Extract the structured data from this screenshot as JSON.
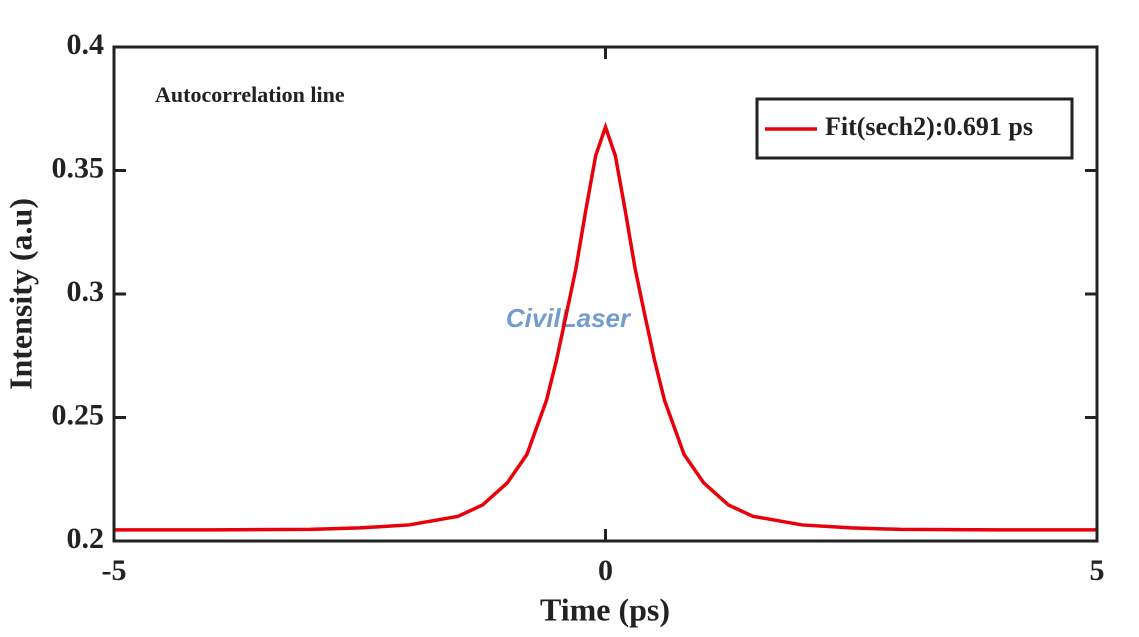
{
  "chart_data": {
    "type": "line",
    "annotation": "Autocorrelation line",
    "watermark": "CivilLaser",
    "x_label": "Time  (ps)",
    "y_label": "Intensity  (a.u)",
    "x": [
      -5,
      -4,
      -3,
      -2.5,
      -2,
      -1.5,
      -1.25,
      -1,
      -0.8,
      -0.6,
      -0.5,
      -0.4,
      -0.3,
      -0.2,
      -0.1,
      0,
      0.1,
      0.2,
      0.3,
      0.4,
      0.5,
      0.6,
      0.8,
      1,
      1.25,
      1.5,
      2,
      2.5,
      3,
      4,
      5
    ],
    "series": [
      {
        "name": "Fit(sech2):0.691 ps",
        "color": "#e8000b",
        "values": [
          0.2045,
          0.2045,
          0.2047,
          0.2053,
          0.2065,
          0.21,
          0.2146,
          0.2235,
          0.235,
          0.257,
          0.273,
          0.2915,
          0.3105,
          0.334,
          0.356,
          0.3676,
          0.356,
          0.334,
          0.3105,
          0.2915,
          0.273,
          0.257,
          0.235,
          0.2235,
          0.2146,
          0.21,
          0.2065,
          0.2053,
          0.2047,
          0.2045,
          0.2045
        ]
      }
    ],
    "xlim": [
      -5,
      5
    ],
    "xticks": [
      -5,
      0,
      5
    ],
    "ylim": [
      0.2,
      0.4
    ],
    "yticks": [
      0.2,
      0.25,
      0.3,
      0.35,
      0.4
    ],
    "legend_position": "upper right"
  }
}
